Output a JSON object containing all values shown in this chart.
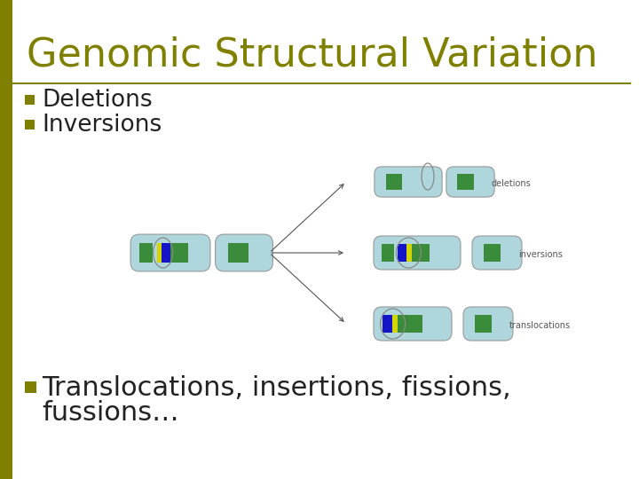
{
  "title": "Genomic Structural Variation",
  "title_color": "#808000",
  "title_fontsize": 32,
  "title_font": "Georgia",
  "sidebar_color": "#808000",
  "hr_color": "#808000",
  "bg_color": "#ffffff",
  "bullet_color": "#808000",
  "bullet_symbol": "■",
  "bullet_fontsize": 19,
  "bullets": [
    "Deletions",
    "Inversions"
  ],
  "bullet_text_color": "#222222",
  "bullet3_text_line1": "Translocations, insertions, fissions,",
  "bullet3_text_line2": "fussions…",
  "bullet3_color": "#222222",
  "bullet3_fontsize": 22,
  "chrom_fill": "#aed6dc",
  "chrom_edge": "#999999",
  "green_band": "#3a8c3a",
  "yellow_band": "#d4d400",
  "blue_band": "#1515c8",
  "label_color": "#555555",
  "label_fontsize": 7,
  "arrow_color": "#555555"
}
